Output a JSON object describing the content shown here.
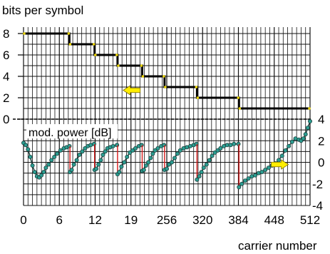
{
  "chart_data": {
    "type": "line",
    "xlabel": "carrier number",
    "x_tick_labels": [
      "0",
      "6",
      "12",
      "19",
      "256",
      "320",
      "384",
      "448",
      "512"
    ],
    "x_range": [
      0,
      512
    ],
    "grid": true,
    "legend": "none",
    "colors": {
      "bits_line": "#000000",
      "bits_marker": "#e8d200",
      "power_line": "#1a3d3a",
      "power_marker": "#2c9e92",
      "jump": "#d81818",
      "arrow": "#ffee00"
    },
    "bits_panel": {
      "ylabel": "bits per symbol",
      "y_range": [
        0,
        8.6
      ],
      "y_ticks": [
        0,
        2,
        4,
        6,
        8
      ],
      "tick_labels": [
        "0",
        "2",
        "4",
        "6",
        "8"
      ],
      "series": [
        {
          "type": "step",
          "points": [
            {
              "x": 0,
              "y": 8
            },
            {
              "x": 82,
              "y": 8
            },
            {
              "x": 82,
              "y": 7
            },
            {
              "x": 127,
              "y": 7
            },
            {
              "x": 127,
              "y": 6
            },
            {
              "x": 168,
              "y": 6
            },
            {
              "x": 168,
              "y": 5
            },
            {
              "x": 212,
              "y": 5
            },
            {
              "x": 212,
              "y": 4
            },
            {
              "x": 252,
              "y": 4
            },
            {
              "x": 252,
              "y": 3
            },
            {
              "x": 310,
              "y": 3
            },
            {
              "x": 310,
              "y": 2
            },
            {
              "x": 385,
              "y": 2
            },
            {
              "x": 385,
              "y": 1
            },
            {
              "x": 512,
              "y": 1
            }
          ]
        }
      ],
      "annotations": [
        {
          "type": "arrow",
          "direction": "left",
          "x": 178,
          "y": 2.7
        }
      ]
    },
    "power_panel": {
      "ylabel": "mod. power [dB]",
      "y_range": [
        -4,
        4
      ],
      "y_ticks": [
        -4,
        -2,
        0,
        2,
        4
      ],
      "tick_labels": [
        "-4",
        "-2",
        "0",
        "2",
        "4"
      ],
      "tick_side": "right",
      "series": [
        {
          "type": "line",
          "points": [
            [
              0,
              1.8
            ],
            [
              4,
              1.6
            ],
            [
              8,
              1.2
            ],
            [
              12,
              0.5
            ],
            [
              16,
              -0.3
            ],
            [
              20,
              -0.9
            ],
            [
              24,
              -1.3
            ],
            [
              28,
              -1.4
            ],
            [
              32,
              -1.2
            ],
            [
              36,
              -0.9
            ],
            [
              40,
              -0.5
            ],
            [
              45,
              -0.2
            ],
            [
              50,
              0.2
            ],
            [
              55,
              0.5
            ],
            [
              60,
              0.8
            ],
            [
              66,
              1.1
            ],
            [
              72,
              1.3
            ],
            [
              77,
              1.4
            ],
            [
              82,
              1.5
            ]
          ]
        },
        {
          "type": "line",
          "points": [
            [
              83,
              -0.9
            ],
            [
              86,
              -0.7
            ],
            [
              90,
              -0.2
            ],
            [
              95,
              0.2
            ],
            [
              100,
              0.7
            ],
            [
              105,
              1.0
            ],
            [
              110,
              1.3
            ],
            [
              115,
              1.5
            ],
            [
              120,
              1.6
            ],
            [
              126,
              1.7
            ]
          ]
        },
        {
          "type": "line",
          "points": [
            [
              127,
              -0.7
            ],
            [
              130,
              -0.6
            ],
            [
              134,
              -0.2
            ],
            [
              138,
              0.2
            ],
            [
              142,
              0.7
            ],
            [
              146,
              1.0
            ],
            [
              150,
              1.3
            ],
            [
              155,
              1.4
            ],
            [
              160,
              1.5
            ],
            [
              167,
              1.6
            ]
          ]
        },
        {
          "type": "line",
          "points": [
            [
              168,
              -1.1
            ],
            [
              171,
              -0.9
            ],
            [
              175,
              -0.4
            ],
            [
              180,
              0.0
            ],
            [
              185,
              0.5
            ],
            [
              190,
              0.9
            ],
            [
              195,
              1.1
            ],
            [
              200,
              1.3
            ],
            [
              206,
              1.5
            ],
            [
              211,
              1.6
            ]
          ]
        },
        {
          "type": "line",
          "points": [
            [
              212,
              -0.8
            ],
            [
              215,
              -0.7
            ],
            [
              219,
              -0.3
            ],
            [
              223,
              0.0
            ],
            [
              227,
              0.4
            ],
            [
              231,
              0.8
            ],
            [
              235,
              1.1
            ],
            [
              240,
              1.3
            ],
            [
              246,
              1.5
            ],
            [
              251,
              1.6
            ]
          ]
        },
        {
          "type": "line",
          "points": [
            [
              252,
              -0.7
            ],
            [
              256,
              -0.6
            ],
            [
              260,
              -0.2
            ],
            [
              265,
              0.0
            ],
            [
              270,
              0.4
            ],
            [
              275,
              0.8
            ],
            [
              280,
              1.1
            ],
            [
              286,
              1.3
            ],
            [
              292,
              1.4
            ],
            [
              298,
              1.5
            ],
            [
              304,
              1.6
            ],
            [
              309,
              1.7
            ]
          ]
        },
        {
          "type": "line",
          "points": [
            [
              310,
              -1.6
            ],
            [
              314,
              -1.3
            ],
            [
              318,
              -0.9
            ],
            [
              322,
              -0.5
            ],
            [
              327,
              -0.2
            ],
            [
              332,
              0.2
            ],
            [
              337,
              0.6
            ],
            [
              342,
              0.9
            ],
            [
              347,
              1.1
            ],
            [
              352,
              1.3
            ],
            [
              358,
              1.5
            ],
            [
              364,
              1.6
            ],
            [
              370,
              1.6
            ],
            [
              376,
              1.7
            ],
            [
              384,
              1.7
            ]
          ]
        },
        {
          "type": "line",
          "points": [
            [
              385,
              -2.3
            ],
            [
              390,
              -2.0
            ],
            [
              396,
              -1.7
            ],
            [
              402,
              -1.5
            ],
            [
              408,
              -1.3
            ],
            [
              414,
              -1.2
            ],
            [
              420,
              -1.0
            ],
            [
              426,
              -0.9
            ],
            [
              432,
              -0.7
            ],
            [
              438,
              -0.5
            ],
            [
              444,
              -0.3
            ],
            [
              450,
              -0.1
            ],
            [
              456,
              0.2
            ],
            [
              462,
              0.6
            ],
            [
              468,
              1.1
            ],
            [
              474,
              1.5
            ],
            [
              480,
              1.9
            ],
            [
              486,
              2.2
            ],
            [
              492,
              2.1
            ],
            [
              496,
              2.0
            ],
            [
              500,
              2.2
            ],
            [
              504,
              2.6
            ],
            [
              508,
              3.2
            ],
            [
              512,
              3.8
            ]
          ]
        }
      ],
      "annotations": [
        {
          "type": "arrow",
          "direction": "right",
          "x": 458,
          "y": -0.2
        }
      ]
    }
  }
}
